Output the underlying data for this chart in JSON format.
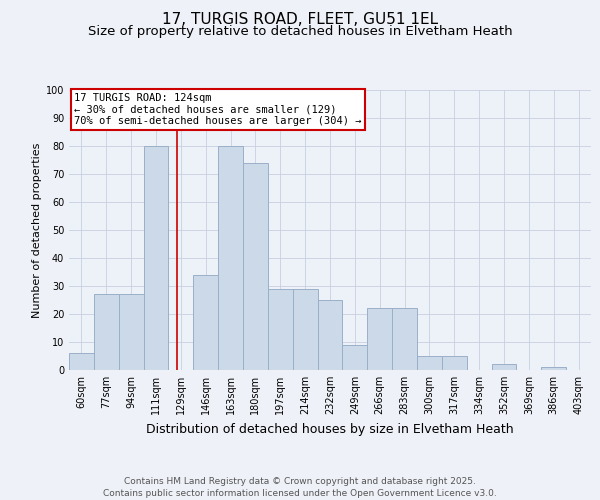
{
  "title": "17, TURGIS ROAD, FLEET, GU51 1EL",
  "subtitle": "Size of property relative to detached houses in Elvetham Heath",
  "xlabel": "Distribution of detached houses by size in Elvetham Heath",
  "ylabel": "Number of detached properties",
  "categories": [
    "60sqm",
    "77sqm",
    "94sqm",
    "111sqm",
    "129sqm",
    "146sqm",
    "163sqm",
    "180sqm",
    "197sqm",
    "214sqm",
    "232sqm",
    "249sqm",
    "266sqm",
    "283sqm",
    "300sqm",
    "317sqm",
    "334sqm",
    "352sqm",
    "369sqm",
    "386sqm",
    "403sqm"
  ],
  "values": [
    6,
    27,
    27,
    80,
    0,
    34,
    80,
    74,
    29,
    29,
    25,
    9,
    22,
    22,
    5,
    5,
    0,
    2,
    0,
    1,
    0
  ],
  "bar_color": "#ccd9e8",
  "bar_edgecolor": "#9ab0c8",
  "red_line_x": 3.85,
  "marker_label": "17 TURGIS ROAD: 124sqm",
  "annotation_line1": "← 30% of detached houses are smaller (129)",
  "annotation_line2": "70% of semi-detached houses are larger (304) →",
  "marker_color": "#cc0000",
  "ylim": [
    0,
    100
  ],
  "yticks": [
    0,
    10,
    20,
    30,
    40,
    50,
    60,
    70,
    80,
    90,
    100
  ],
  "footer_line1": "Contains HM Land Registry data © Crown copyright and database right 2025.",
  "footer_line2": "Contains public sector information licensed under the Open Government Licence v3.0.",
  "bg_color": "#eef1f7",
  "plot_bg_color": "#edf1f8",
  "grid_color": "#c8cfe0",
  "title_fontsize": 11,
  "subtitle_fontsize": 9.5,
  "xlabel_fontsize": 9,
  "ylabel_fontsize": 8,
  "tick_fontsize": 7,
  "footer_fontsize": 6.5,
  "ann_fontsize": 7.5
}
